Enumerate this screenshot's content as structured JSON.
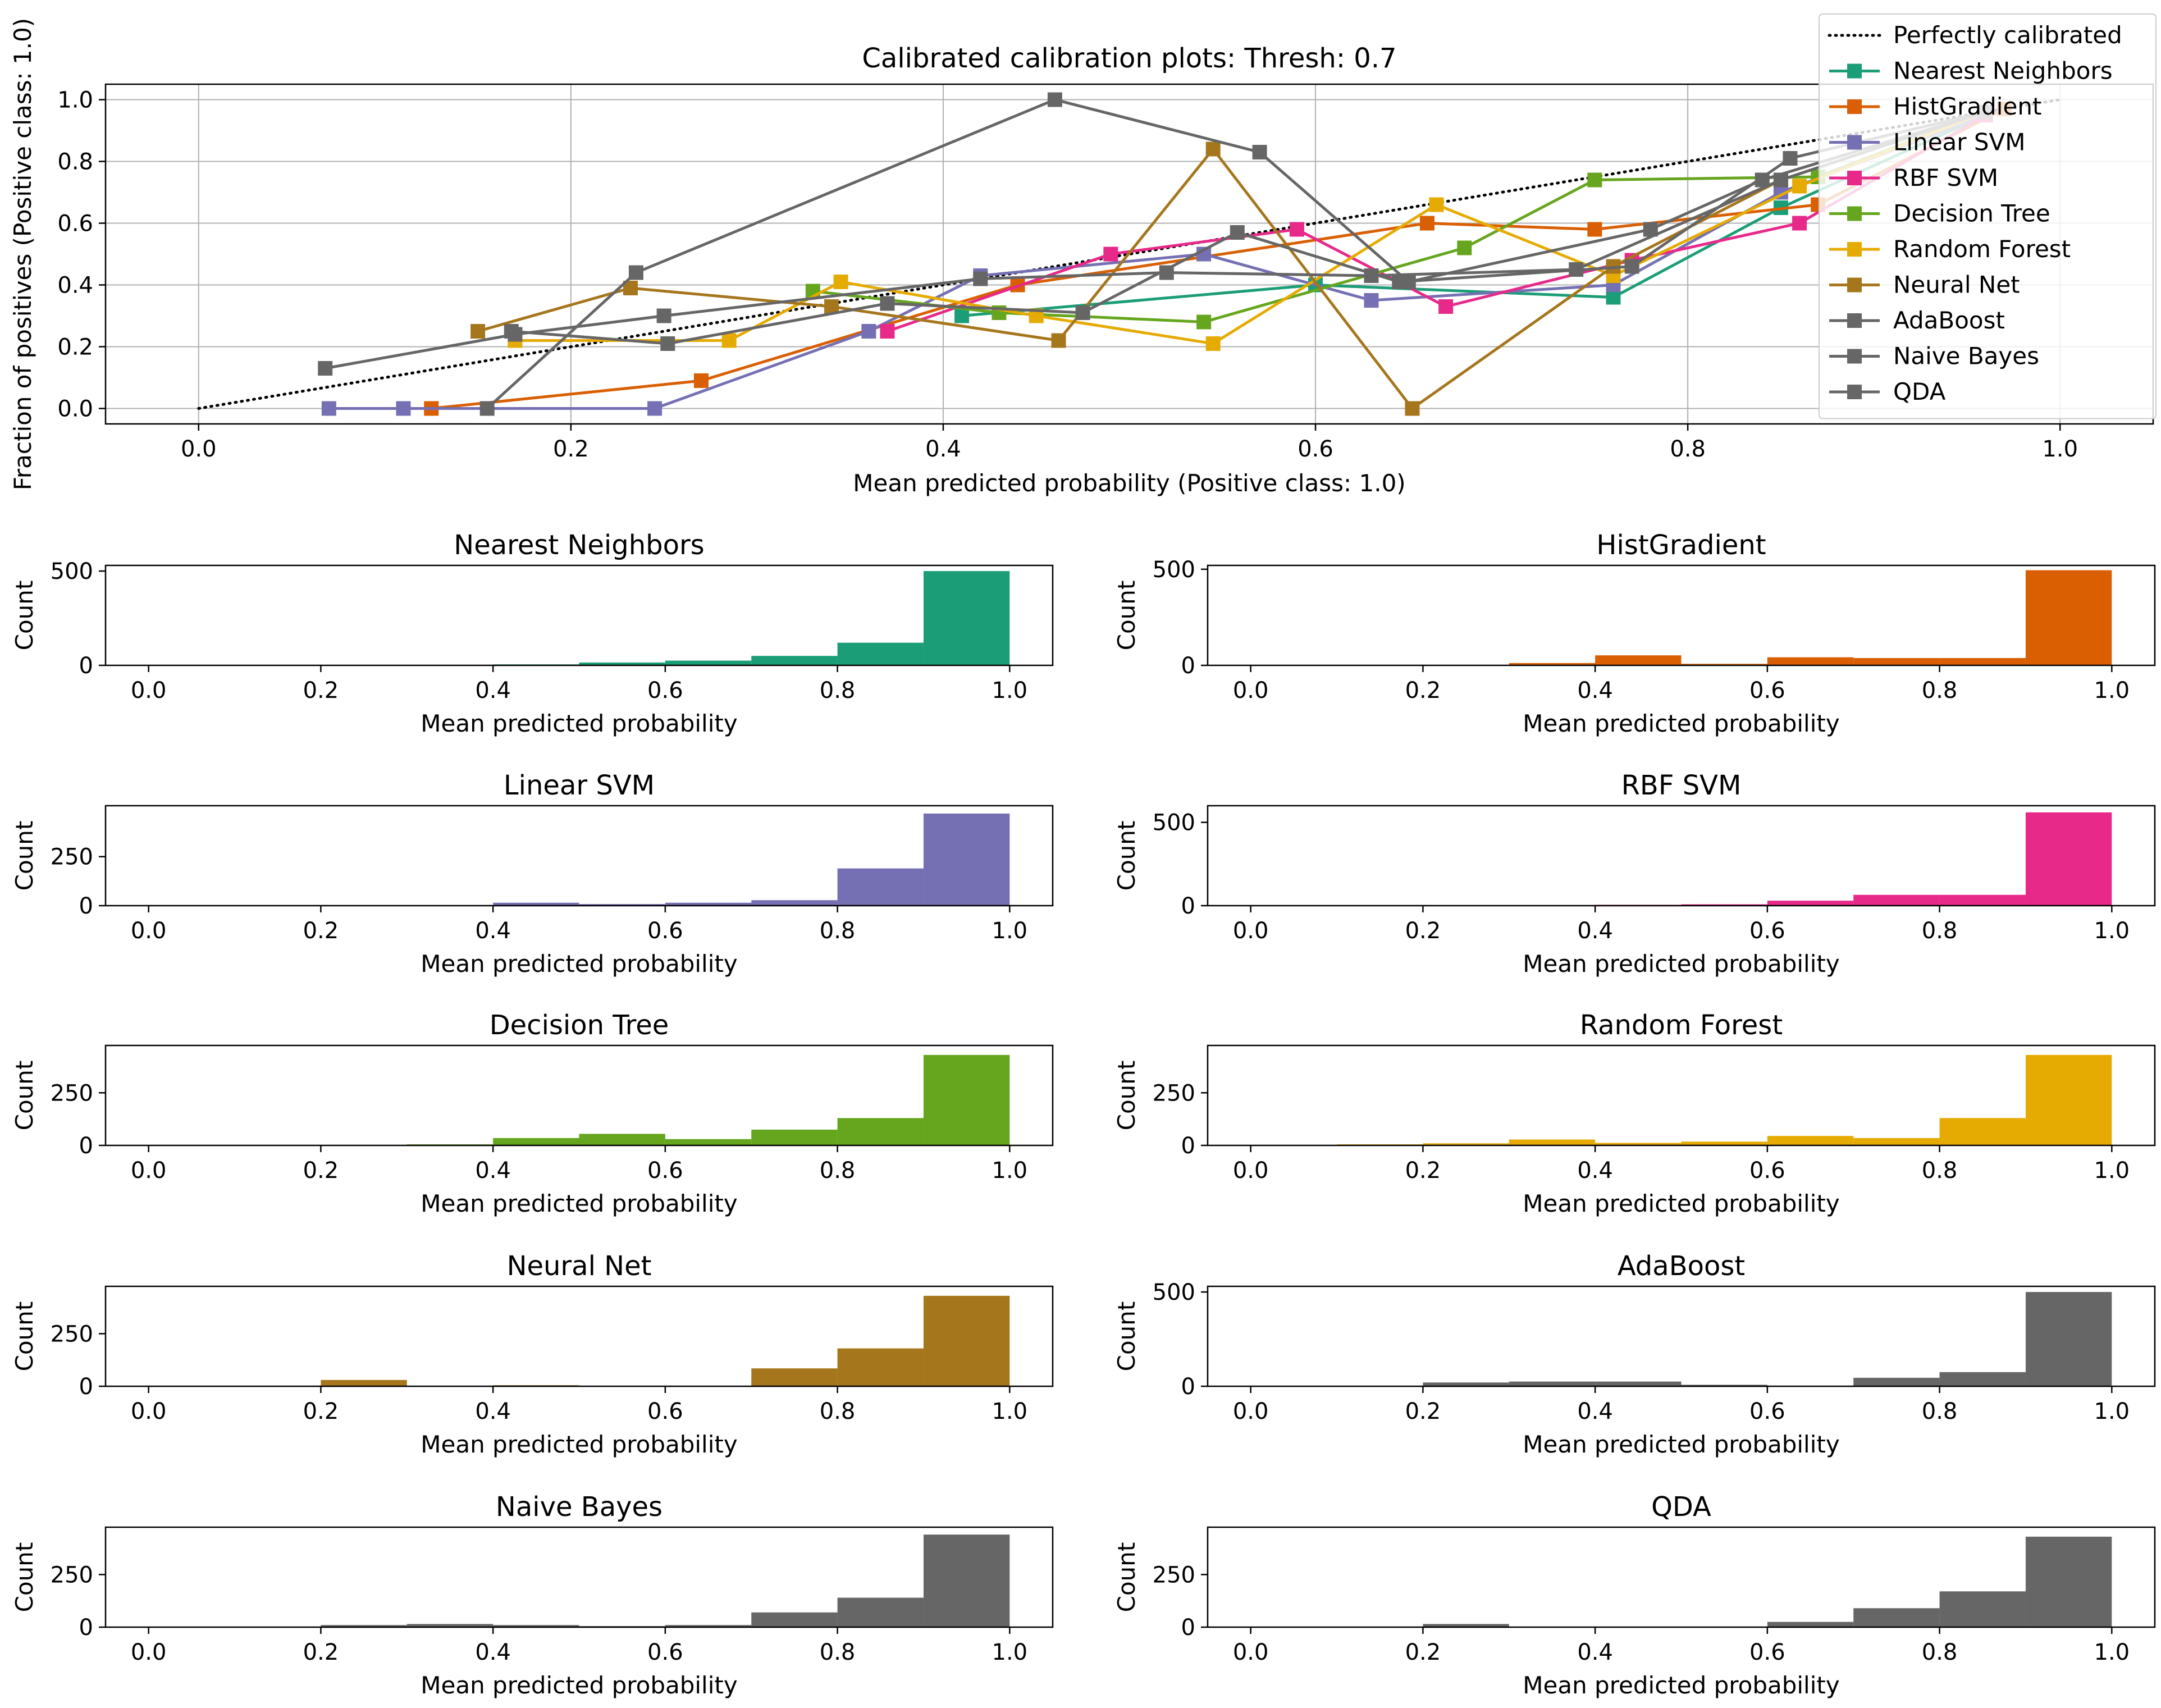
{
  "chart_data": {
    "calibration": {
      "type": "line",
      "title": "Calibrated calibration plots: Thresh: 0.7",
      "xlabel": "Mean predicted probability (Positive class: 1.0)",
      "ylabel": "Fraction of positives (Positive class: 1.0)",
      "xlim": [
        -0.05,
        1.05
      ],
      "ylim": [
        -0.05,
        1.05
      ],
      "xticks": [
        "0.0",
        "0.2",
        "0.4",
        "0.6",
        "0.8",
        "1.0"
      ],
      "yticks": [
        "0.0",
        "0.2",
        "0.4",
        "0.6",
        "0.8",
        "1.0"
      ],
      "grid": true,
      "legend_position": "upper right",
      "reference": {
        "name": "Perfectly calibrated",
        "x": [
          0,
          1
        ],
        "y": [
          0,
          1
        ]
      },
      "series": [
        {
          "name": "Nearest Neighbors",
          "color": "#1b9e77",
          "x": [
            0.41,
            0.6,
            0.76,
            0.85,
            0.96
          ],
          "y": [
            0.3,
            0.4,
            0.36,
            0.65,
            0.95
          ]
        },
        {
          "name": "HistGradient",
          "color": "#d95f02",
          "x": [
            0.125,
            0.27,
            0.44,
            0.66,
            0.75,
            0.87,
            0.97
          ],
          "y": [
            0.0,
            0.09,
            0.4,
            0.6,
            0.58,
            0.66,
            0.97
          ]
        },
        {
          "name": "Linear SVM",
          "color": "#7570b3",
          "x": [
            0.07,
            0.11,
            0.245,
            0.36,
            0.42,
            0.54,
            0.63,
            0.76,
            0.85,
            0.96
          ],
          "y": [
            0.0,
            0.0,
            0.0,
            0.25,
            0.43,
            0.5,
            0.35,
            0.4,
            0.7,
            0.95
          ]
        },
        {
          "name": "RBF SVM",
          "color": "#e7298a",
          "x": [
            0.37,
            0.49,
            0.59,
            0.67,
            0.77,
            0.86,
            0.96
          ],
          "y": [
            0.25,
            0.5,
            0.58,
            0.33,
            0.48,
            0.6,
            0.95
          ]
        },
        {
          "name": "Decision Tree",
          "color": "#66a61e",
          "x": [
            0.33,
            0.43,
            0.54,
            0.68,
            0.75,
            0.87,
            0.96
          ],
          "y": [
            0.38,
            0.31,
            0.28,
            0.52,
            0.74,
            0.75,
            0.96
          ]
        },
        {
          "name": "Random Forest",
          "color": "#e6ab02",
          "x": [
            0.17,
            0.285,
            0.345,
            0.45,
            0.545,
            0.665,
            0.76,
            0.86,
            0.96
          ],
          "y": [
            0.22,
            0.22,
            0.41,
            0.3,
            0.21,
            0.66,
            0.43,
            0.72,
            0.96
          ]
        },
        {
          "name": "Neural Net",
          "color": "#a6761d",
          "x": [
            0.15,
            0.232,
            0.34,
            0.462,
            0.545,
            0.652,
            0.76,
            0.85,
            0.96
          ],
          "y": [
            0.25,
            0.39,
            0.33,
            0.22,
            0.84,
            0.0,
            0.46,
            0.74,
            0.96
          ]
        },
        {
          "name": "AdaBoost",
          "color": "#666666",
          "x": [
            0.068,
            0.17,
            0.25,
            0.42,
            0.52,
            0.63,
            0.74,
            0.85,
            0.96
          ],
          "y": [
            0.13,
            0.24,
            0.3,
            0.42,
            0.44,
            0.43,
            0.45,
            0.74,
            0.96
          ]
        },
        {
          "name": "Naive Bayes",
          "color": "#666666",
          "x": [
            0.168,
            0.252,
            0.37,
            0.475,
            0.558,
            0.645,
            0.77,
            0.855,
            0.96
          ],
          "y": [
            0.25,
            0.21,
            0.34,
            0.31,
            0.57,
            0.41,
            0.46,
            0.81,
            0.96
          ]
        },
        {
          "name": "QDA",
          "color": "#666666",
          "x": [
            0.155,
            0.235,
            0.46,
            0.57,
            0.65,
            0.78,
            0.84,
            0.96
          ],
          "y": [
            0.0,
            0.44,
            1.0,
            0.83,
            0.41,
            0.58,
            0.74,
            0.96
          ]
        }
      ]
    },
    "histograms": {
      "type": "bar",
      "xlabel": "Mean predicted probability",
      "ylabel": "Count",
      "xlim": [
        -0.05,
        1.05
      ],
      "xticks": [
        "0.0",
        "0.2",
        "0.4",
        "0.6",
        "0.8",
        "1.0"
      ],
      "bin_edges": [
        0.0,
        0.1,
        0.2,
        0.3,
        0.4,
        0.5,
        0.6,
        0.7,
        0.8,
        0.9,
        1.0
      ],
      "panels": [
        {
          "title": "Nearest Neighbors",
          "color": "#1b9e77",
          "ymax": 530,
          "yticks": [
            0,
            500
          ],
          "ytick_labels": [
            "0",
            "500"
          ],
          "counts": [
            0,
            0,
            0,
            0,
            5,
            15,
            25,
            50,
            120,
            500
          ]
        },
        {
          "title": "HistGradient",
          "color": "#d95f02",
          "ymax": 520,
          "yticks": [
            0,
            500
          ],
          "ytick_labels": [
            "0",
            "500"
          ],
          "counts": [
            0,
            0,
            0,
            12,
            52,
            8,
            42,
            38,
            38,
            495
          ]
        },
        {
          "title": "Linear SVM",
          "color": "#7570b3",
          "ymax": 510,
          "yticks": [
            0,
            250
          ],
          "ytick_labels": [
            "0",
            "250"
          ],
          "counts": [
            0,
            0,
            0,
            0,
            15,
            8,
            15,
            28,
            190,
            470
          ]
        },
        {
          "title": "RBF SVM",
          "color": "#e7298a",
          "ymax": 600,
          "yticks": [
            0,
            500
          ],
          "ytick_labels": [
            "0",
            "500"
          ],
          "counts": [
            0,
            0,
            0,
            0,
            5,
            8,
            30,
            65,
            65,
            560
          ]
        },
        {
          "title": "Decision Tree",
          "color": "#66a61e",
          "ymax": 475,
          "yticks": [
            0,
            250
          ],
          "ytick_labels": [
            "0",
            "250"
          ],
          "counts": [
            0,
            0,
            0,
            5,
            35,
            55,
            30,
            75,
            130,
            430
          ]
        },
        {
          "title": "Random Forest",
          "color": "#e6ab02",
          "ymax": 475,
          "yticks": [
            0,
            250
          ],
          "ytick_labels": [
            "0",
            "250"
          ],
          "counts": [
            0,
            5,
            10,
            28,
            12,
            18,
            45,
            35,
            130,
            430
          ]
        },
        {
          "title": "Neural Net",
          "color": "#a6761d",
          "ymax": 475,
          "yticks": [
            0,
            250
          ],
          "ytick_labels": [
            "0",
            "250"
          ],
          "counts": [
            0,
            0,
            30,
            0,
            5,
            0,
            0,
            85,
            180,
            430
          ]
        },
        {
          "title": "AdaBoost",
          "color": "#666666",
          "ymax": 530,
          "yticks": [
            0,
            500
          ],
          "ytick_labels": [
            "0",
            "500"
          ],
          "counts": [
            0,
            0,
            20,
            25,
            25,
            8,
            0,
            45,
            75,
            500
          ]
        },
        {
          "title": "Naive Bayes",
          "color": "#666666",
          "ymax": 475,
          "yticks": [
            0,
            250
          ],
          "ytick_labels": [
            "0",
            "250"
          ],
          "counts": [
            0,
            0,
            10,
            15,
            10,
            5,
            10,
            70,
            140,
            440
          ]
        },
        {
          "title": "QDA",
          "color": "#666666",
          "ymax": 475,
          "yticks": [
            0,
            250
          ],
          "ytick_labels": [
            "0",
            "250"
          ],
          "counts": [
            0,
            0,
            15,
            0,
            0,
            0,
            25,
            90,
            170,
            430
          ]
        }
      ]
    }
  }
}
